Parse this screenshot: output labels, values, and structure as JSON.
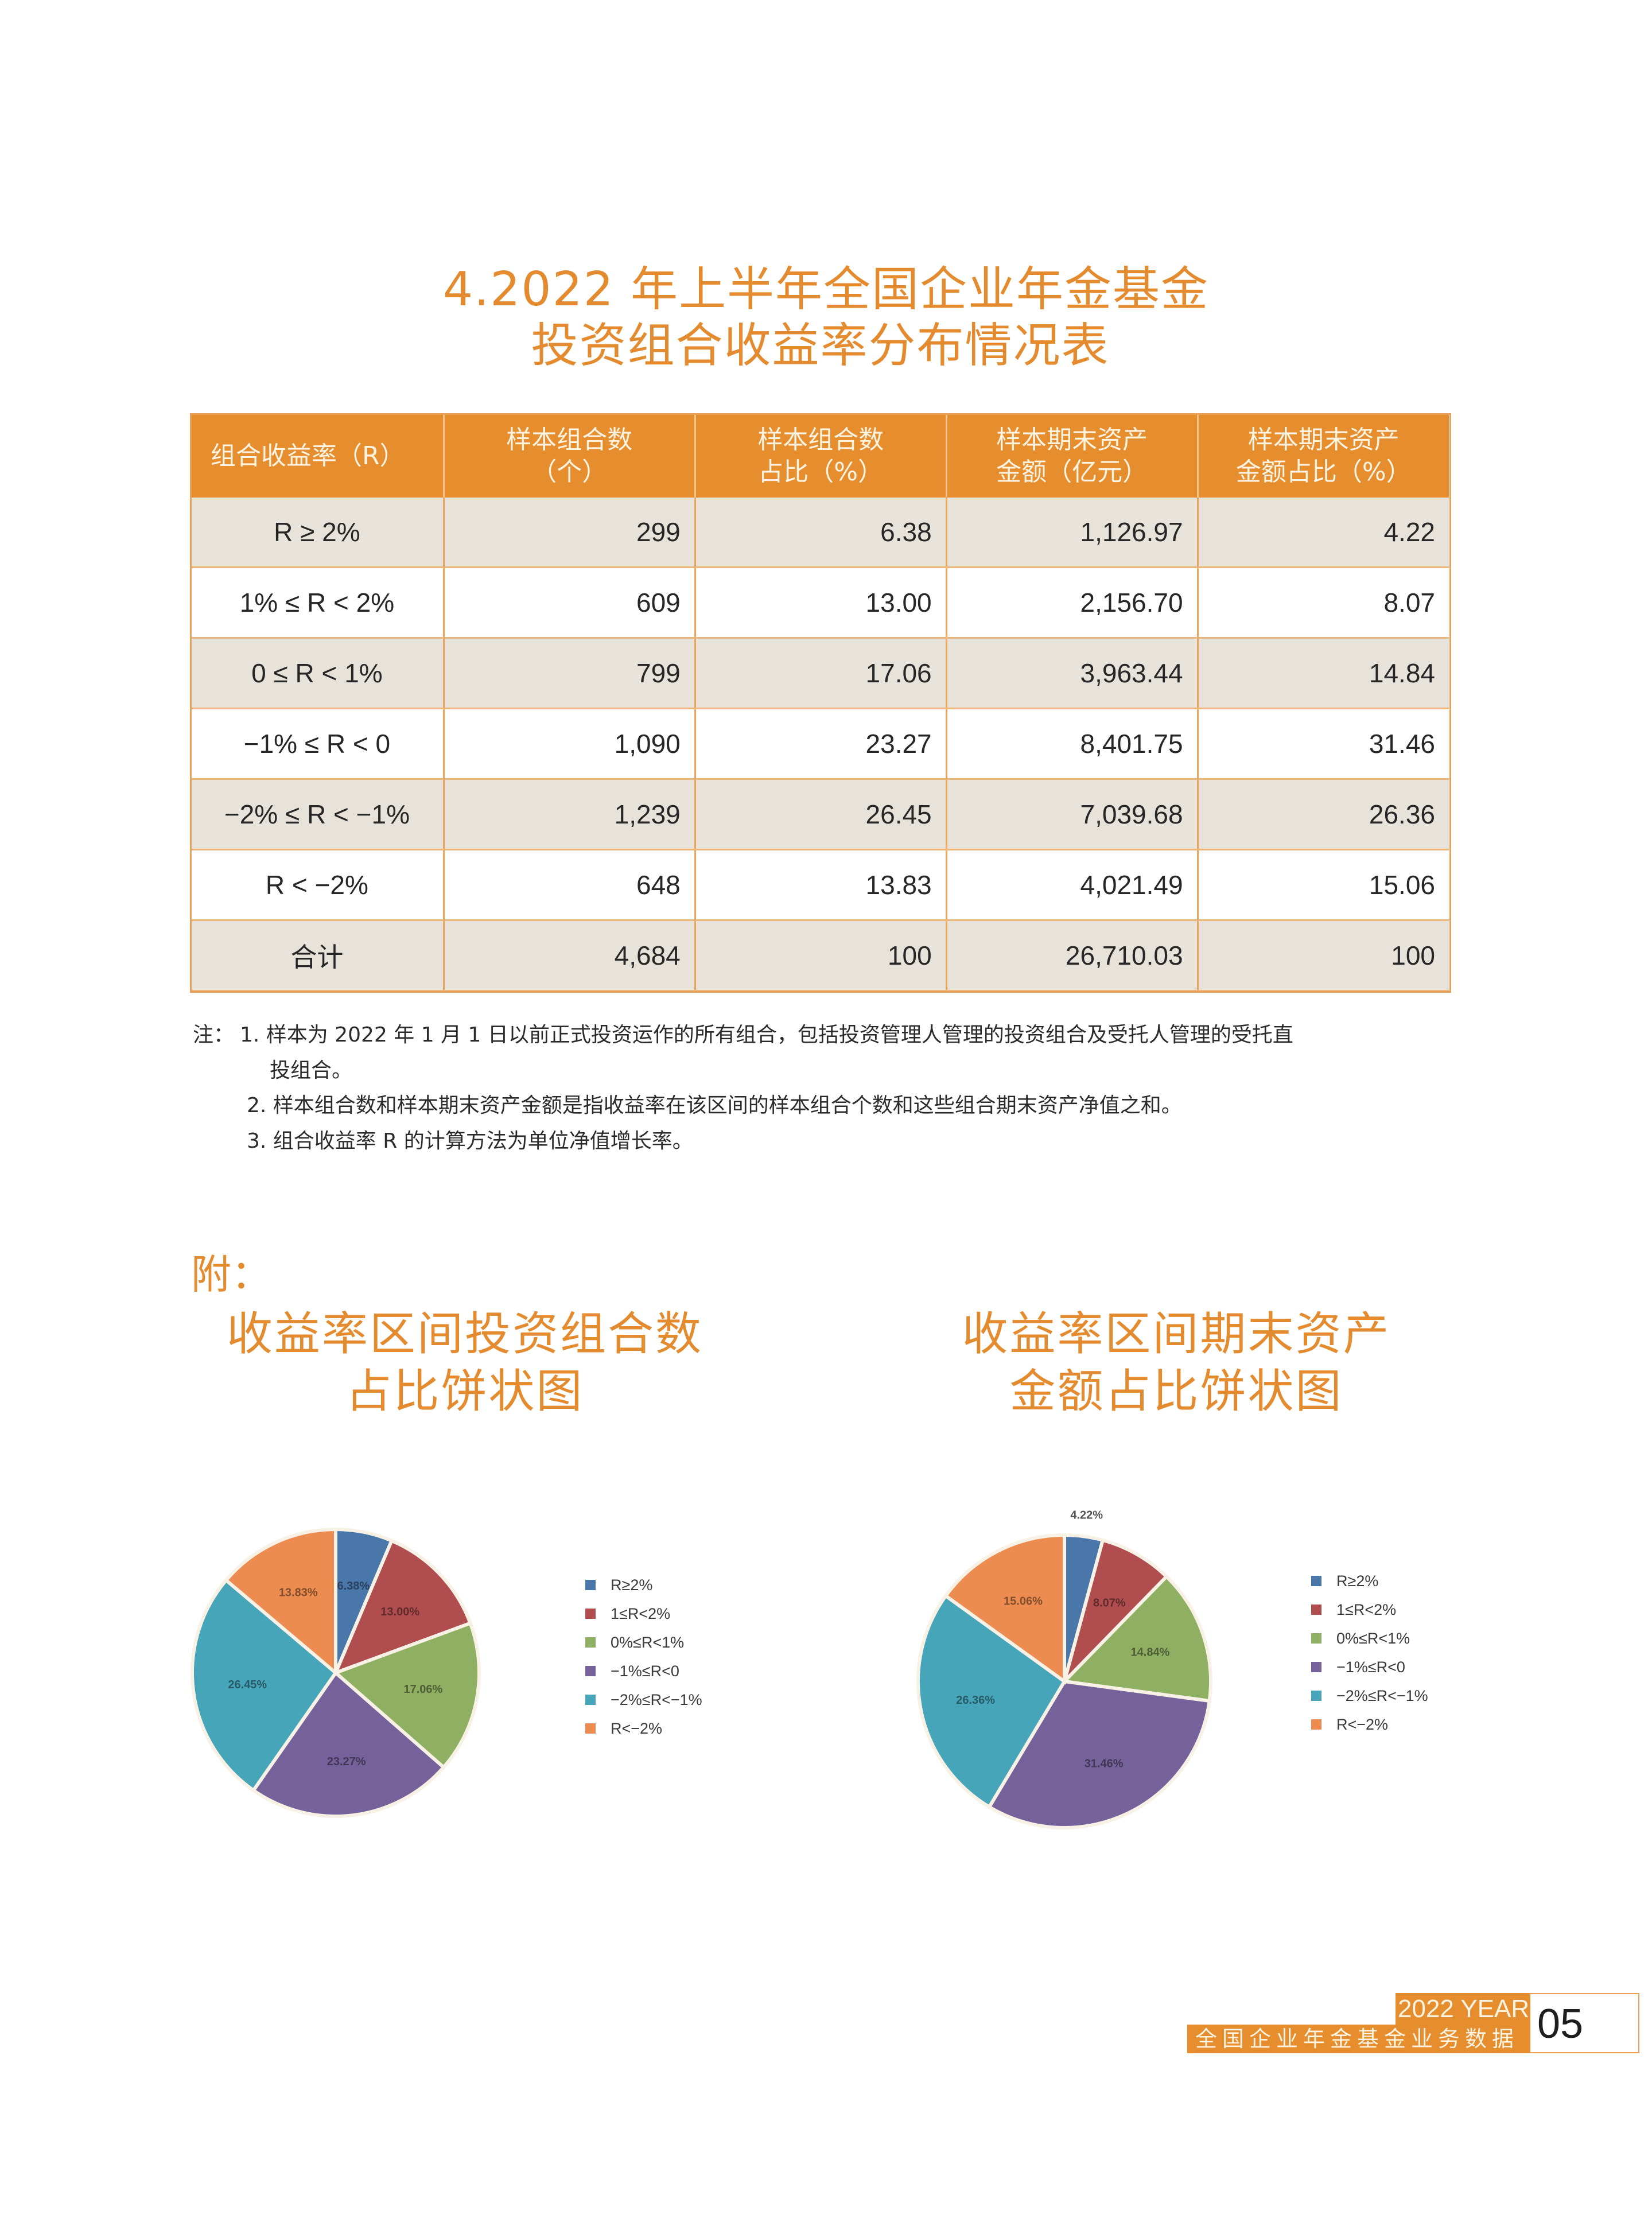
{
  "title": {
    "line1": "4.2022 年上半年全国企业年金基金",
    "line2": "投资组合收益率分布情况表"
  },
  "table": {
    "headers": [
      {
        "line1": "组合收益率（R）",
        "line2": ""
      },
      {
        "line1": "样本组合数",
        "line2": "（个）"
      },
      {
        "line1": "样本组合数",
        "line2": "占比（%）"
      },
      {
        "line1": "样本期末资产",
        "line2": "金额（亿元）"
      },
      {
        "line1": "样本期末资产",
        "line2": "金额占比（%）"
      }
    ],
    "rows": [
      {
        "range": "R ≥ 2%",
        "count": "299",
        "count_pct": "6.38",
        "assets": "1,126.97",
        "assets_pct": "4.22"
      },
      {
        "range": "1% ≤ R < 2%",
        "count": "609",
        "count_pct": "13.00",
        "assets": "2,156.70",
        "assets_pct": "8.07"
      },
      {
        "range": "0 ≤ R < 1%",
        "count": "799",
        "count_pct": "17.06",
        "assets": "3,963.44",
        "assets_pct": "14.84"
      },
      {
        "range": "−1% ≤ R < 0",
        "count": "1,090",
        "count_pct": "23.27",
        "assets": "8,401.75",
        "assets_pct": "31.46"
      },
      {
        "range": "−2% ≤ R < −1%",
        "count": "1,239",
        "count_pct": "26.45",
        "assets": "7,039.68",
        "assets_pct": "26.36"
      },
      {
        "range": "R < −2%",
        "count": "648",
        "count_pct": "13.83",
        "assets": "4,021.49",
        "assets_pct": "15.06"
      },
      {
        "range": "合计",
        "count": "4,684",
        "count_pct": "100",
        "assets": "26,710.03",
        "assets_pct": "100"
      }
    ]
  },
  "notes": {
    "prefix": "注：",
    "n1a": "1. 样本为 2022 年 1 月 1 日以前正式投资运作的所有组合，包括投资管理人管理的投资组合及受托人管理的受托直",
    "n1b": "投组合。",
    "n2": "2. 样本组合数和样本期末资产金额是指收益率在该区间的样本组合个数和这些组合期末资产净值之和。",
    "n3": "3. 组合收益率 R 的计算方法为单位净值增长率。"
  },
  "appendix": {
    "label": "附：",
    "left_title": {
      "line1": "收益率区间投资组合数",
      "line2": "占比饼状图"
    },
    "right_title": {
      "line1": "收益率区间期末资产",
      "line2": "金额占比饼状图"
    }
  },
  "legend": [
    {
      "label": "R≥2%",
      "color": "#4A77AA"
    },
    {
      "label": "1≤R<2%",
      "color": "#B04E4F"
    },
    {
      "label": "0%≤R<1%",
      "color": "#8FAF62"
    },
    {
      "label": "−1%≤R<0",
      "color": "#76629B"
    },
    {
      "label": "−2%≤R<−1%",
      "color": "#47A5BA"
    },
    {
      "label": "R<−2%",
      "color": "#EC8C50"
    }
  ],
  "chart_data": [
    {
      "type": "pie",
      "title": "收益率区间投资组合数占比饼状图",
      "categories": [
        "R≥2%",
        "1≤R<2%",
        "0%≤R<1%",
        "−1%≤R<0",
        "−2%≤R<−1%",
        "R<−2%"
      ],
      "values": [
        6.38,
        13.0,
        17.06,
        23.27,
        26.45,
        13.83
      ],
      "labels": [
        "6.38%",
        "13.00%",
        "17.06%",
        "23.27%",
        "26.45%",
        "13.83%"
      ],
      "colors": [
        "#4A77AA",
        "#B04E4F",
        "#8FAF62",
        "#76629B",
        "#47A5BA",
        "#EC8C50"
      ],
      "legend_position": "right",
      "start_angle": "12 o'clock, clockwise"
    },
    {
      "type": "pie",
      "title": "收益率区间期末资产金额占比饼状图",
      "categories": [
        "R≥2%",
        "1≤R<2%",
        "0%≤R<1%",
        "−1%≤R<0",
        "−2%≤R<−1%",
        "R<−2%"
      ],
      "values": [
        4.22,
        8.07,
        14.84,
        31.46,
        26.36,
        15.06
      ],
      "labels": [
        "4.22%",
        "8.07%",
        "14.84%",
        "31.46%",
        "26.36%",
        "15.06%"
      ],
      "colors": [
        "#4A77AA",
        "#B04E4F",
        "#8FAF62",
        "#76629B",
        "#47A5BA",
        "#EC8C50"
      ],
      "legend_position": "right",
      "start_angle": "12 o'clock, clockwise"
    }
  ],
  "footer": {
    "year": "2022 YEAR",
    "subtitle": "全国企业年金基金业务数据",
    "page": "05"
  }
}
